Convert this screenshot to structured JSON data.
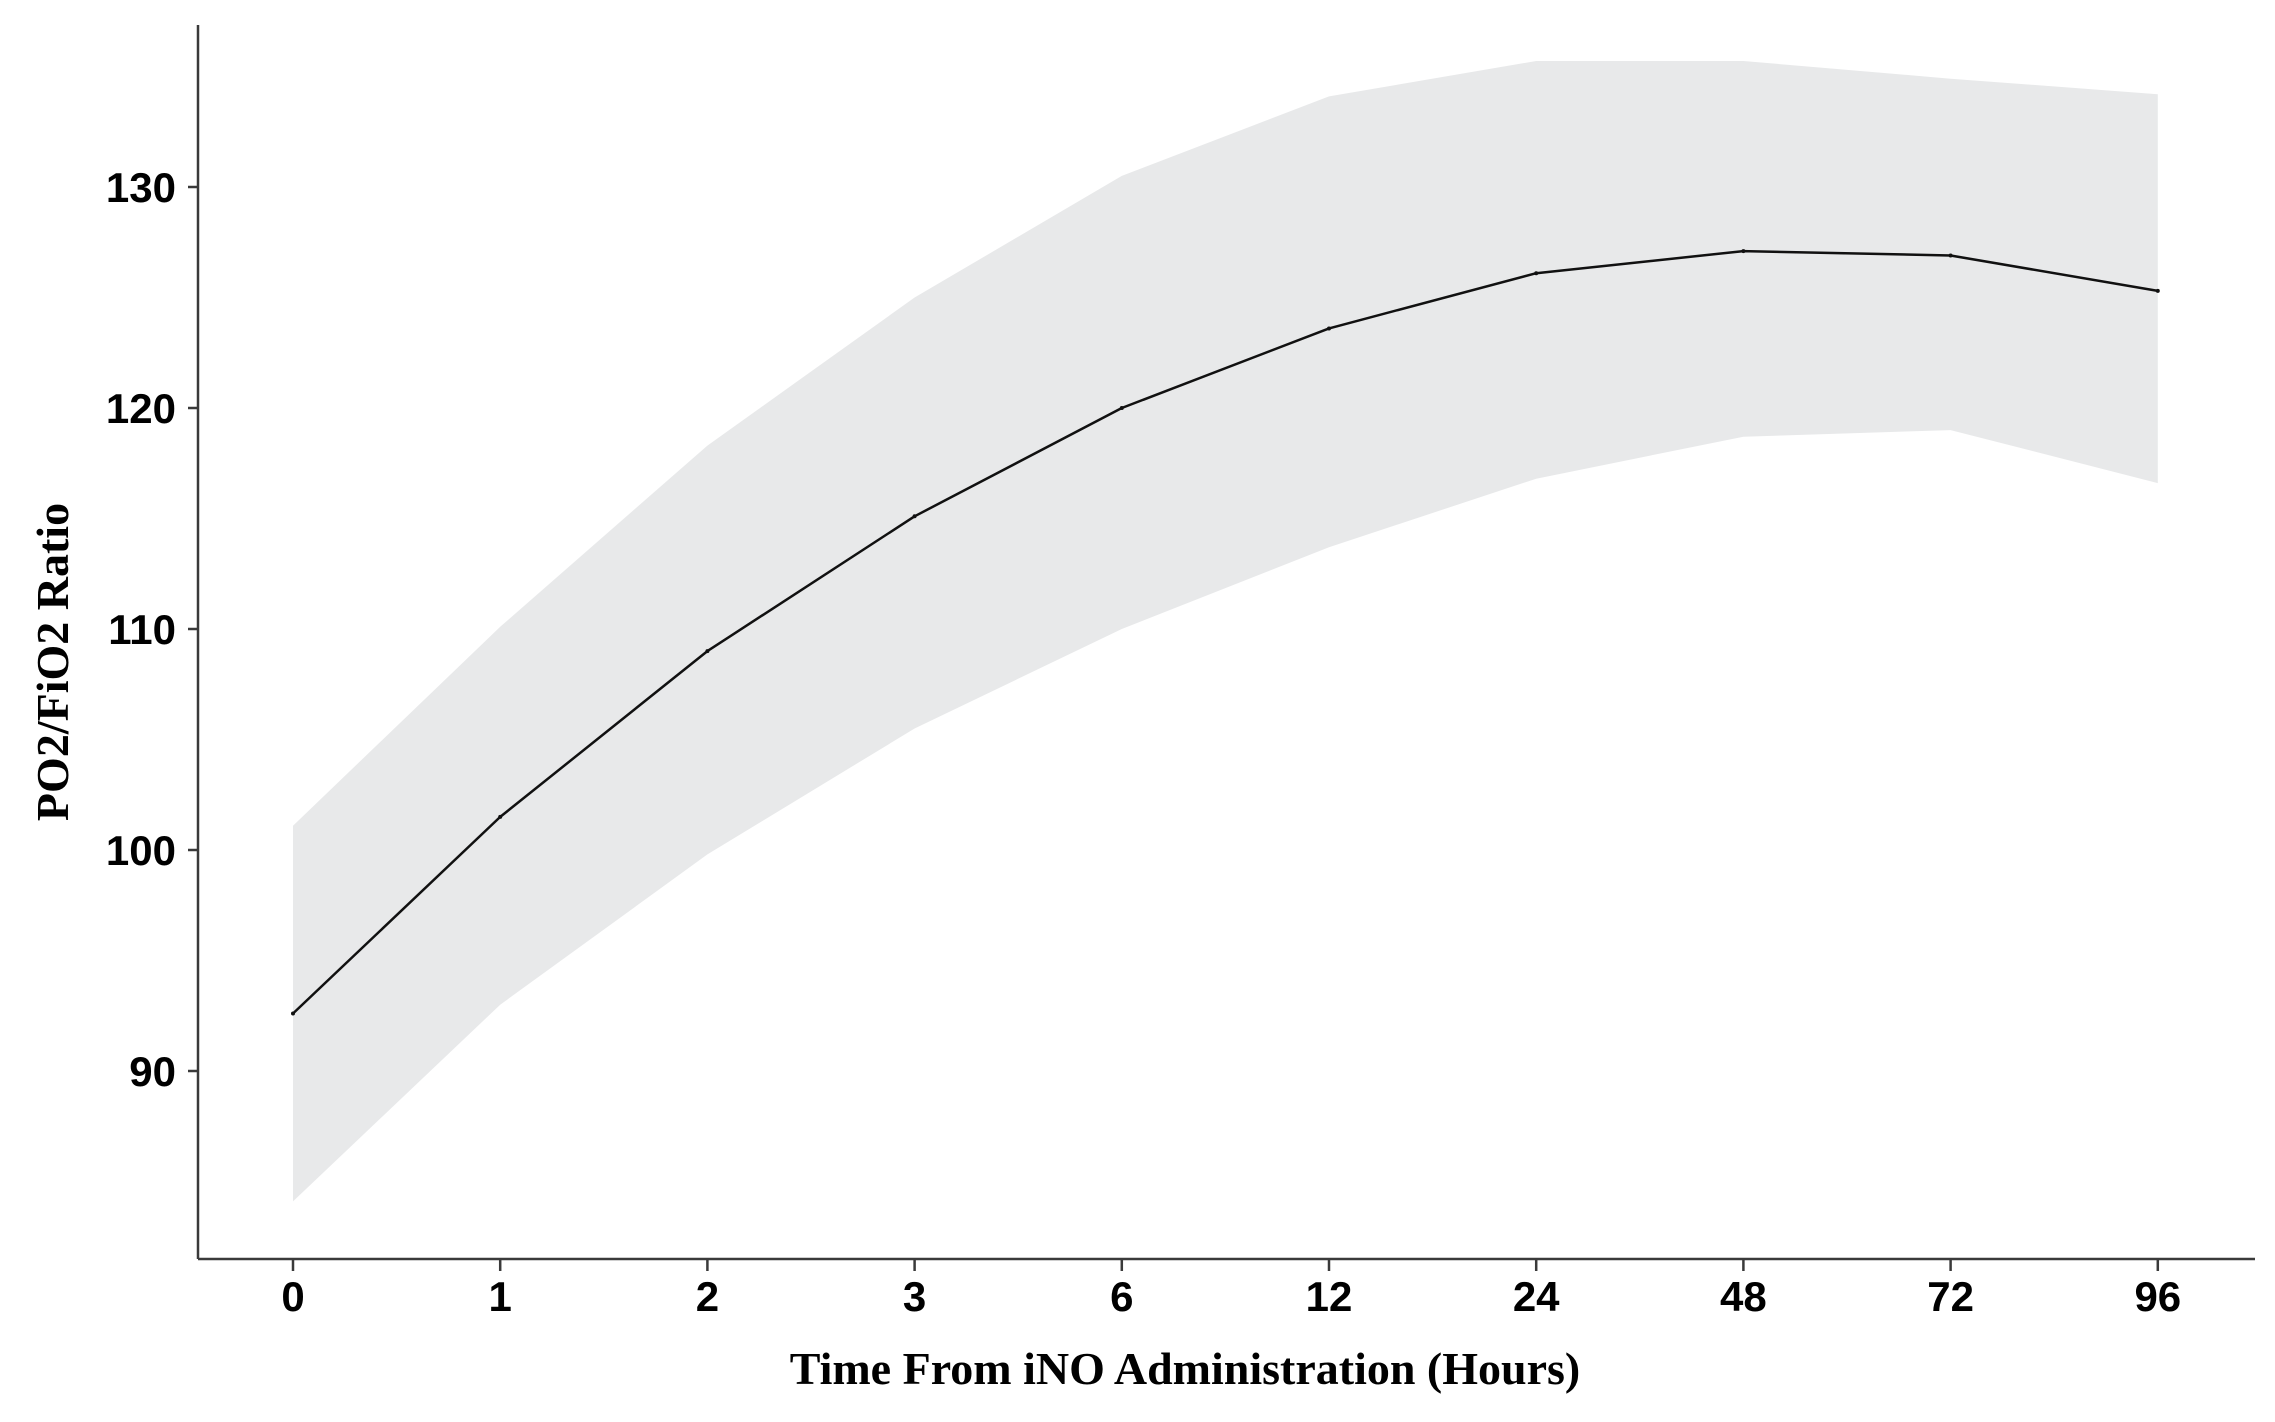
{
  "chart_data": {
    "type": "line",
    "xlabel": "Time From iNO Administration (Hours)",
    "ylabel": "PO2/FiO2 Ratio",
    "categories": [
      "0",
      "1",
      "2",
      "3",
      "6",
      "12",
      "24",
      "48",
      "72",
      "96"
    ],
    "series": [
      {
        "values": [
          92.6,
          101.5,
          109.0,
          115.1,
          120.0,
          123.6,
          126.1,
          127.1,
          126.9,
          125.3
        ],
        "ci_lower": [
          84.1,
          93.0,
          99.8,
          105.5,
          110.0,
          113.7,
          116.8,
          118.7,
          119.0,
          116.6
        ],
        "ci_upper": [
          101.1,
          110.1,
          118.3,
          125.0,
          130.5,
          134.1,
          135.7,
          135.7,
          134.9,
          134.2
        ]
      }
    ],
    "yticks": [
      90,
      100,
      110,
      120,
      130
    ],
    "ylim": [
      81.5,
      138.5
    ],
    "grid": false,
    "legend": "none",
    "colors": {
      "line": "#111111",
      "band": "#e8e9ea",
      "axis": "#3a3a3a"
    }
  }
}
